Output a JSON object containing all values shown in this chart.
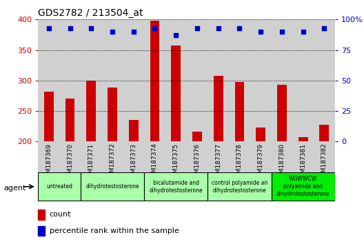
{
  "title": "GDS2782 / 213504_at",
  "samples": [
    "GSM187369",
    "GSM187370",
    "GSM187371",
    "GSM187372",
    "GSM187373",
    "GSM187374",
    "GSM187375",
    "GSM187376",
    "GSM187377",
    "GSM187378",
    "GSM187379",
    "GSM187380",
    "GSM187381",
    "GSM187382"
  ],
  "counts": [
    282,
    270,
    300,
    288,
    235,
    398,
    357,
    216,
    308,
    298,
    223,
    293,
    207,
    227
  ],
  "percentiles": [
    93,
    93,
    93,
    90,
    90,
    93,
    87,
    93,
    93,
    93,
    90,
    90,
    90,
    93
  ],
  "ylim_left": [
    200,
    400
  ],
  "ylim_right": [
    0,
    100
  ],
  "yticks_left": [
    200,
    250,
    300,
    350,
    400
  ],
  "yticks_right": [
    0,
    25,
    50,
    75,
    100
  ],
  "bar_color": "#cc0000",
  "dot_color": "#0000cc",
  "background_color": "#ffffff",
  "col_bg_color": "#d0d0d0",
  "group_color_light": "#aaffaa",
  "group_color_bright": "#00ee00",
  "agent_groups": [
    {
      "label": "untreated",
      "start": 0,
      "end": 1,
      "bright": false
    },
    {
      "label": "dihydrotestosterone",
      "start": 2,
      "end": 4,
      "bright": false
    },
    {
      "label": "bicalutamide and\ndihydrotestosterone",
      "start": 5,
      "end": 7,
      "bright": false
    },
    {
      "label": "control polyamide an\ndihydrotestosterone",
      "start": 8,
      "end": 10,
      "bright": false
    },
    {
      "label": "WGWWCW\npolyamide and\ndihydrotestosterone",
      "start": 11,
      "end": 13,
      "bright": true
    }
  ]
}
